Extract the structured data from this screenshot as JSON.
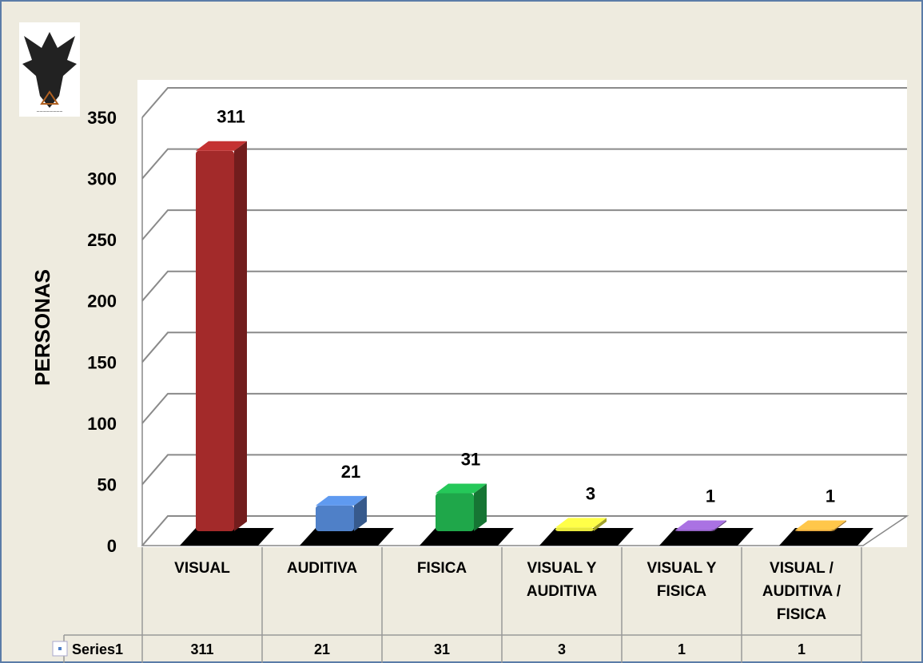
{
  "chart_data": {
    "type": "bar3d",
    "y_label": "PERSONAS",
    "categories": [
      "VISUAL",
      "AUDITIVA",
      "FISICA",
      "VISUAL Y AUDITIVA",
      "VISUAL Y FISICA",
      "VISUAL / AUDITIVA / FISICA"
    ],
    "series": [
      {
        "name": "Series1",
        "values": [
          311,
          21,
          31,
          3,
          1,
          1
        ]
      }
    ],
    "colors": [
      "#a32a2a",
      "#4f80c8",
      "#1fa74a",
      "#e8e83c",
      "#8e5fbd",
      "#e3a63e"
    ],
    "ylim": [
      0,
      350
    ],
    "yticks": [
      0,
      50,
      100,
      150,
      200,
      250,
      300,
      350
    ],
    "grid": true,
    "data_table": true
  }
}
